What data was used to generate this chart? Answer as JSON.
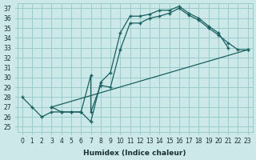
{
  "xlabel": "Humidex (Indice chaleur)",
  "xlim": [
    -0.5,
    23.5
  ],
  "ylim": [
    24.5,
    37.5
  ],
  "xticks": [
    0,
    1,
    2,
    3,
    4,
    5,
    6,
    7,
    8,
    9,
    10,
    11,
    12,
    13,
    14,
    15,
    16,
    17,
    18,
    19,
    20,
    21,
    22,
    23
  ],
  "yticks": [
    25,
    26,
    27,
    28,
    29,
    30,
    31,
    32,
    33,
    34,
    35,
    36,
    37
  ],
  "background_color": "#cce8e8",
  "grid_color": "#99cccc",
  "line_color": "#1a6060",
  "curve1_x": [
    0,
    1,
    2,
    3,
    4,
    5,
    6,
    7,
    8,
    9,
    10,
    11,
    12,
    13,
    14,
    15,
    16,
    17,
    18,
    19,
    20,
    21
  ],
  "curve1_y": [
    28,
    27,
    26,
    26.5,
    26.5,
    26.5,
    26.5,
    25.5,
    29.5,
    30.5,
    34.5,
    36.2,
    36.2,
    36.4,
    36.8,
    36.8,
    37.2,
    36.5,
    36.0,
    35.2,
    34.5,
    33.0
  ],
  "curve2_x": [
    3,
    4,
    5,
    6,
    7,
    7,
    8,
    9,
    10,
    11,
    12,
    13,
    14,
    15,
    16,
    17,
    18,
    19,
    20,
    21,
    22,
    23
  ],
  "curve2_y": [
    27.0,
    26.5,
    26.5,
    26.5,
    30.2,
    26.5,
    29.2,
    29.0,
    32.8,
    35.5,
    35.5,
    36.0,
    36.2,
    36.5,
    37.0,
    36.3,
    35.8,
    35.0,
    34.3,
    33.5,
    32.8,
    32.8
  ],
  "curve3_x": [
    3,
    23
  ],
  "curve3_y": [
    27.0,
    32.8
  ]
}
